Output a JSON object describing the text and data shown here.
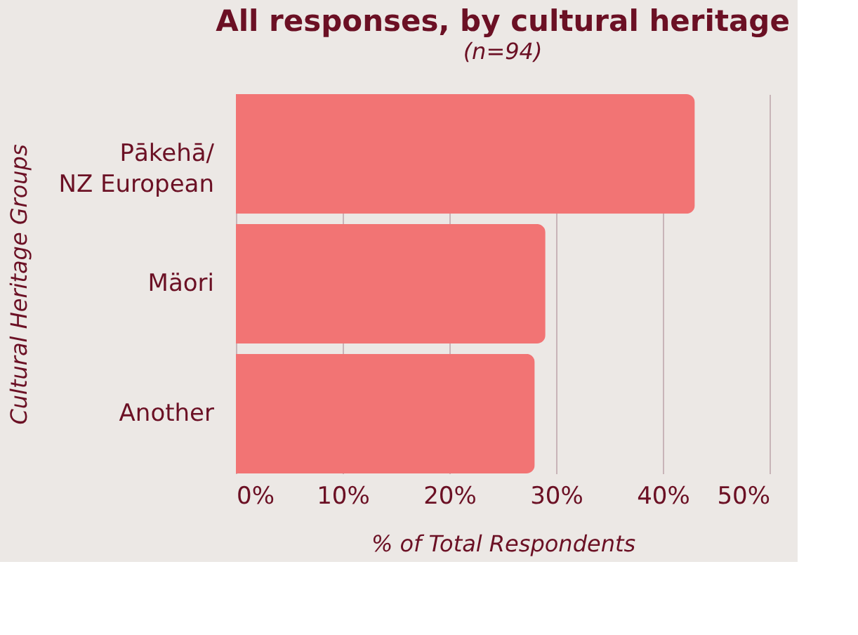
{
  "chart_data": {
    "type": "bar",
    "orientation": "horizontal",
    "title": "All responses, by cultural heritage",
    "subtitle": "(n=94)",
    "categories": [
      "Pākehā/\nNZ European",
      "Mäori",
      "Another"
    ],
    "values": [
      43,
      29,
      28
    ],
    "color": "#f27474",
    "xlabel": "% of Total Respondents",
    "ylabel": "Cultural Heritage Groups",
    "xlim": [
      0,
      50
    ],
    "xticks": [
      {
        "value": 0,
        "label": "0%"
      },
      {
        "value": 10,
        "label": "10%"
      },
      {
        "value": 20,
        "label": "20%"
      },
      {
        "value": 30,
        "label": "30%"
      },
      {
        "value": 40,
        "label": "40%"
      },
      {
        "value": 50,
        "label": "50%"
      }
    ],
    "grid": "x"
  }
}
